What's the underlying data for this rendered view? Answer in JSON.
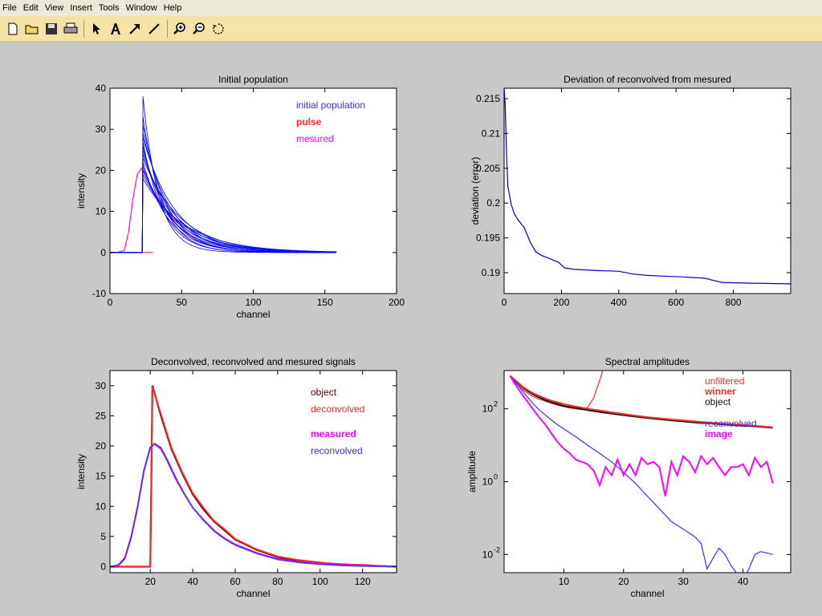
{
  "menu": {
    "items": [
      "File",
      "Edit",
      "View",
      "Insert",
      "Tools",
      "Window",
      "Help"
    ]
  },
  "toolbar": {
    "icons": [
      "new-file-icon",
      "open-folder-icon",
      "save-icon",
      "print-icon",
      "arrow-pointer-icon",
      "text-icon",
      "arrow-line-icon",
      "line-icon",
      "zoom-in-icon",
      "zoom-out-icon",
      "rotate-icon"
    ]
  },
  "chart_data": [
    {
      "type": "line",
      "title": "Initial population",
      "xlabel": "channel",
      "ylabel": "intensity",
      "xlim": [
        0,
        200
      ],
      "ylim": [
        -10,
        40
      ],
      "xticks": [
        0,
        50,
        100,
        150,
        200
      ],
      "yticks": [
        -10,
        0,
        10,
        20,
        30,
        40
      ],
      "legend": [
        {
          "label": "initial population",
          "color": "#3333ff",
          "bold": false
        },
        {
          "label": "pulse",
          "color": "#ff2a2a",
          "bold": true
        },
        {
          "label": "mesured",
          "color": "#ff00ff",
          "bold": false
        }
      ],
      "legend_position": "top-right",
      "series": [
        {
          "name": "pulse",
          "color": "#ff2a2a",
          "x": [
            0,
            30
          ],
          "y": [
            0,
            0
          ]
        },
        {
          "name": "mesured",
          "color": "#ff00ff",
          "x": [
            0,
            5,
            10,
            13,
            16,
            19,
            22,
            25,
            28,
            32,
            36,
            40,
            45,
            50,
            60,
            70,
            80,
            90,
            100,
            110,
            120,
            135
          ],
          "y": [
            0,
            0,
            0.5,
            5,
            13,
            19,
            20.5,
            19,
            16.5,
            14,
            12,
            10,
            7.5,
            5.5,
            3,
            1.8,
            1,
            0.5,
            0.3,
            0.2,
            0.1,
            0
          ]
        },
        {
          "name": "initial population",
          "color": "#0000ff",
          "peaks": [
            38,
            33,
            31,
            29,
            28,
            27,
            26,
            25,
            24,
            23,
            22,
            21,
            20,
            19,
            18
          ],
          "peak_x": 23,
          "end_x": 158
        }
      ]
    },
    {
      "type": "line",
      "title": "Deviation of reconvolved from mesured",
      "xlabel": "",
      "ylabel": "deviation (error)",
      "xlim": [
        0,
        1000
      ],
      "ylim": [
        0.187,
        0.2165
      ],
      "xticks": [
        0,
        200,
        400,
        600,
        800
      ],
      "yticks": [
        0.19,
        0.195,
        0.2,
        0.205,
        0.21,
        0.215
      ],
      "series": [
        {
          "name": "deviation",
          "color": "#0000cc",
          "x": [
            0,
            4,
            8,
            13,
            18,
            25,
            35,
            50,
            70,
            90,
            110,
            130,
            160,
            190,
            210,
            240,
            280,
            330,
            400,
            450,
            500,
            560,
            620,
            700,
            760,
            850,
            1000
          ],
          "y": [
            0.2165,
            0.214,
            0.2075,
            0.2025,
            0.2013,
            0.1998,
            0.1985,
            0.1975,
            0.1965,
            0.1945,
            0.193,
            0.1925,
            0.192,
            0.1915,
            0.1907,
            0.1905,
            0.1904,
            0.1903,
            0.1902,
            0.1898,
            0.1896,
            0.1895,
            0.1894,
            0.1892,
            0.1886,
            0.1885,
            0.1884
          ]
        }
      ]
    },
    {
      "type": "line",
      "title": "Deconvolved, reconvolved and mesured signals",
      "xlabel": "channel",
      "ylabel": "intensity",
      "xlim": [
        1,
        136
      ],
      "ylim": [
        -1,
        32.5
      ],
      "xticks": [
        20,
        40,
        60,
        80,
        100,
        120
      ],
      "yticks": [
        0,
        5,
        10,
        15,
        20,
        25,
        30
      ],
      "legend": [
        {
          "label": "object",
          "color": "#550000",
          "bold": false
        },
        {
          "label": "deconvolved",
          "color": "#ff2a2a",
          "bold": false
        },
        {
          "label": "measured",
          "color": "#ff00ff",
          "bold": true
        },
        {
          "label": "reconvolved",
          "color": "#3333ff",
          "bold": false
        }
      ],
      "legend_position": "top-right",
      "series": [
        {
          "name": "object",
          "color": "#660000",
          "x": [
            1,
            20,
            20.5,
            21,
            25,
            30,
            35,
            40,
            45,
            50,
            55,
            60,
            70,
            80,
            90,
            100,
            110,
            120,
            136
          ],
          "y": [
            0,
            0,
            15,
            30,
            25,
            19.5,
            15.5,
            12,
            9.5,
            7.5,
            6,
            4.5,
            2.8,
            1.6,
            1,
            0.6,
            0.4,
            0.2,
            0
          ]
        },
        {
          "name": "deconvolved",
          "color": "#ff2a2a",
          "x": [
            1,
            20,
            20.5,
            21,
            25,
            30,
            35,
            40,
            45,
            50,
            55,
            60,
            70,
            80,
            90,
            100,
            110,
            120,
            136
          ],
          "y": [
            0,
            0,
            15,
            29.8,
            25.3,
            19.7,
            15.7,
            12.2,
            9.8,
            7.6,
            6.2,
            4.6,
            2.9,
            1.7,
            1.1,
            0.7,
            0.4,
            0.3,
            0
          ]
        },
        {
          "name": "measured",
          "color": "#ff00ff",
          "x": [
            1,
            5,
            8,
            11,
            14,
            17,
            20,
            22,
            25,
            28,
            32,
            36,
            40,
            45,
            50,
            55,
            60,
            70,
            80,
            90,
            100,
            110,
            120,
            136
          ],
          "y": [
            0,
            0.3,
            1.5,
            5,
            10,
            16,
            19.8,
            20.3,
            19.5,
            17.5,
            14.5,
            12,
            9.8,
            7.8,
            6,
            4.7,
            3.7,
            2.3,
            1.3,
            0.8,
            0.5,
            0.3,
            0.2,
            0
          ]
        },
        {
          "name": "reconvolved",
          "color": "#5533ee",
          "x": [
            1,
            5,
            8,
            11,
            14,
            17,
            20,
            22,
            25,
            28,
            32,
            36,
            40,
            45,
            50,
            55,
            60,
            70,
            80,
            90,
            100,
            110,
            120,
            136
          ],
          "y": [
            0,
            0.2,
            1.3,
            4.8,
            9.8,
            15.8,
            19.7,
            20.4,
            19.7,
            17.7,
            14.7,
            12.1,
            9.8,
            7.7,
            5.9,
            4.6,
            3.6,
            2.2,
            1.2,
            0.7,
            0.4,
            0.2,
            0.1,
            0
          ]
        }
      ]
    },
    {
      "type": "line",
      "title": "Spectral amplitudes",
      "xlabel": "channel",
      "ylabel": "amplitude",
      "xlim": [
        0,
        48
      ],
      "ylog": true,
      "ylim_log10": [
        -2.5,
        3.05
      ],
      "xticks": [
        10,
        20,
        30,
        40
      ],
      "yticks": [
        0.01,
        1,
        100
      ],
      "ytick_labels": [
        [
          "10",
          "-2"
        ],
        [
          "10",
          "0"
        ],
        [
          "10",
          "2"
        ]
      ],
      "legend": [
        {
          "label": "unfiltered",
          "color": "#ff2a2a",
          "bold": false
        },
        {
          "label": "winner",
          "color": "#ff2a2a",
          "bold": true
        },
        {
          "label": "object",
          "color": "#111111",
          "bold": false
        },
        {
          "label": "reconvolved",
          "color": "#3333ff",
          "bold": false
        },
        {
          "label": "image",
          "color": "#ff00ff",
          "bold": true
        }
      ],
      "legend_position": "top-right",
      "series": [
        {
          "name": "unfiltered",
          "color": "#ff2a2a",
          "x": [
            1,
            2,
            3,
            4,
            5,
            6,
            7,
            8,
            9,
            10,
            11,
            12,
            13,
            14,
            15,
            16,
            17,
            18,
            19,
            20,
            21,
            22,
            23,
            24,
            25,
            26,
            27,
            28,
            29,
            30
          ],
          "y": [
            800,
            500,
            350,
            260,
            210,
            180,
            160,
            140,
            125,
            115,
            105,
            100,
            95,
            110,
            200,
            600,
            2000,
            5000,
            9000,
            20000,
            60000,
            200000,
            800000,
            3000000,
            10000000.0,
            20000000.0,
            300000,
            10000000.0,
            50000000.0,
            100000000.0
          ]
        },
        {
          "name": "object",
          "color": "#111111",
          "x": [
            1,
            2,
            3,
            4,
            5,
            6,
            7,
            8,
            9,
            10,
            12,
            14,
            16,
            18,
            20,
            22,
            24,
            26,
            28,
            30,
            32,
            34,
            36,
            38,
            40,
            42,
            44,
            45
          ],
          "y": [
            800,
            560,
            400,
            300,
            240,
            200,
            170,
            150,
            135,
            120,
            105,
            92,
            82,
            74,
            67,
            61,
            56,
            52,
            48,
            45,
            42,
            40,
            38,
            36,
            34,
            33,
            31,
            30
          ]
        },
        {
          "name": "winner",
          "color": "#ff2a2a",
          "x": [
            1,
            2,
            3,
            4,
            5,
            6,
            7,
            8,
            9,
            10,
            12,
            14,
            16,
            18,
            20,
            22,
            24,
            26,
            28,
            30,
            32,
            34,
            36,
            38,
            40,
            42,
            44,
            45
          ],
          "y": [
            810,
            580,
            420,
            320,
            260,
            220,
            190,
            165,
            150,
            135,
            115,
            100,
            90,
            80,
            72,
            65,
            59,
            55,
            51,
            48,
            45,
            42,
            40,
            38,
            36,
            34,
            32,
            31
          ]
        },
        {
          "name": "reconvolved",
          "color": "#3333ff",
          "x": [
            1,
            2,
            3,
            4,
            5,
            6,
            7,
            8,
            9,
            10,
            12,
            14,
            16,
            18,
            20,
            22,
            24,
            26,
            28,
            30,
            32,
            33,
            34,
            35,
            36,
            37,
            38,
            39,
            40,
            41,
            42,
            43,
            44,
            45
          ],
          "y": [
            800,
            500,
            320,
            200,
            130,
            90,
            65,
            48,
            36,
            28,
            17,
            10,
            6,
            3.5,
            1.8,
            0.9,
            0.4,
            0.18,
            0.08,
            0.05,
            0.03,
            0.02,
            0.004,
            0.008,
            0.015,
            0.01,
            0.005,
            0.003,
            0.002,
            0.004,
            0.01,
            0.012,
            0.011,
            0.01
          ]
        },
        {
          "name": "image",
          "color": "#ff00ff",
          "x": [
            1,
            2,
            3,
            4,
            5,
            6,
            7,
            8,
            9,
            10,
            11,
            12,
            13,
            14,
            15,
            16,
            17,
            18,
            19,
            20,
            21,
            22,
            23,
            24,
            25,
            26,
            27,
            28,
            29,
            30,
            31,
            32,
            33,
            34,
            35,
            36,
            37,
            38,
            39,
            40,
            41,
            42,
            43,
            44,
            45
          ],
          "y": [
            800,
            430,
            250,
            150,
            90,
            55,
            35,
            20,
            12,
            8,
            6,
            4,
            3.5,
            3,
            2,
            0.8,
            2.5,
            1.5,
            4,
            1.5,
            3,
            1.5,
            4.5,
            3,
            3.5,
            2.5,
            0.4,
            3.5,
            1.5,
            5,
            3.5,
            1.8,
            5,
            3,
            4.5,
            2.5,
            1.5,
            2.5,
            2.5,
            3,
            1.5,
            4.5,
            2.5,
            3.5,
            0.9
          ]
        }
      ]
    }
  ]
}
